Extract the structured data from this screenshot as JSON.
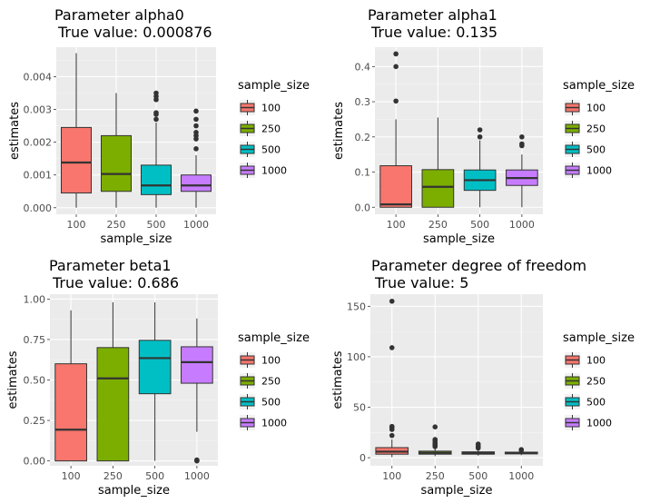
{
  "chart_data": [
    {
      "type": "boxplot",
      "title": "Parameter alpha0",
      "subtitle": "True value:  0.000876",
      "xlabel": "sample_size",
      "ylabel": "estimates",
      "categories": [
        "100",
        "250",
        "500",
        "1000"
      ],
      "ylim": [
        -0.0002,
        0.0049
      ],
      "yticks": [
        "0.000",
        "0.001",
        "0.002",
        "0.003",
        "0.004"
      ],
      "ytick_values": [
        0,
        0.001,
        0.002,
        0.003,
        0.004
      ],
      "legend": {
        "title": "sample_size",
        "labels": [
          "100",
          "250",
          "500",
          "1000"
        ],
        "position": "right"
      },
      "boxes": [
        {
          "whisker_low": 0.0,
          "q1": 0.00045,
          "median": 0.00138,
          "q3": 0.00245,
          "whisker_high": 0.00472,
          "outliers": []
        },
        {
          "whisker_low": 0.0,
          "q1": 0.0005,
          "median": 0.00103,
          "q3": 0.0022,
          "whisker_high": 0.0035,
          "outliers": []
        },
        {
          "whisker_low": 0.0,
          "q1": 0.0004,
          "median": 0.00068,
          "q3": 0.0013,
          "whisker_high": 0.0026,
          "outliers": [
            0.0027,
            0.00285,
            0.0029,
            0.0033,
            0.0034,
            0.0035
          ]
        },
        {
          "whisker_low": 0.0,
          "q1": 0.0005,
          "median": 0.00068,
          "q3": 0.001,
          "whisker_high": 0.0016,
          "outliers": [
            0.0018,
            0.0021,
            0.0022,
            0.0023,
            0.0025,
            0.0027,
            0.00295
          ]
        }
      ]
    },
    {
      "type": "boxplot",
      "title": "Parameter alpha1",
      "subtitle": "True value:  0.135",
      "xlabel": "sample_size",
      "ylabel": "estimates",
      "categories": [
        "100",
        "250",
        "500",
        "1000"
      ],
      "ylim": [
        -0.02,
        0.455
      ],
      "yticks": [
        "0.0",
        "0.1",
        "0.2",
        "0.3",
        "0.4"
      ],
      "ytick_values": [
        0,
        0.1,
        0.2,
        0.3,
        0.4
      ],
      "legend": {
        "title": "sample_size",
        "labels": [
          "100",
          "250",
          "500",
          "1000"
        ],
        "position": "right"
      },
      "boxes": [
        {
          "whisker_low": 0.0,
          "q1": 0.0,
          "median": 0.008,
          "q3": 0.118,
          "whisker_high": 0.25,
          "outliers": [
            0.302,
            0.4,
            0.436
          ]
        },
        {
          "whisker_low": 0.0,
          "q1": 0.0,
          "median": 0.058,
          "q3": 0.107,
          "whisker_high": 0.255,
          "outliers": []
        },
        {
          "whisker_low": 0.0,
          "q1": 0.048,
          "median": 0.077,
          "q3": 0.106,
          "whisker_high": 0.19,
          "outliers": [
            0.2,
            0.22
          ]
        },
        {
          "whisker_low": 0.0,
          "q1": 0.062,
          "median": 0.083,
          "q3": 0.106,
          "whisker_high": 0.15,
          "outliers": [
            0.175,
            0.18,
            0.2
          ]
        }
      ]
    },
    {
      "type": "boxplot",
      "title": "Parameter beta1",
      "subtitle": "True value:  0.686",
      "xlabel": "sample_size",
      "ylabel": "estimates",
      "categories": [
        "100",
        "250",
        "500",
        "1000"
      ],
      "ylim": [
        -0.03,
        1.03
      ],
      "yticks": [
        "0.00",
        "0.25",
        "0.50",
        "0.75",
        "1.00"
      ],
      "ytick_values": [
        0,
        0.25,
        0.5,
        0.75,
        1.0
      ],
      "legend": {
        "title": "sample_size",
        "labels": [
          "100",
          "250",
          "500",
          "1000"
        ],
        "position": "right"
      },
      "boxes": [
        {
          "whisker_low": 0.0,
          "q1": 0.0,
          "median": 0.193,
          "q3": 0.6,
          "whisker_high": 0.93,
          "outliers": []
        },
        {
          "whisker_low": 0.0,
          "q1": 0.0,
          "median": 0.51,
          "q3": 0.7,
          "whisker_high": 0.98,
          "outliers": []
        },
        {
          "whisker_low": 0.0,
          "q1": 0.415,
          "median": 0.635,
          "q3": 0.745,
          "whisker_high": 0.98,
          "outliers": []
        },
        {
          "whisker_low": 0.18,
          "q1": 0.48,
          "median": 0.61,
          "q3": 0.705,
          "whisker_high": 0.88,
          "outliers": [
            0.0,
            0.003,
            0.006
          ]
        }
      ]
    },
    {
      "type": "boxplot",
      "title": "Parameter degree of freedom",
      "subtitle": "True value:  5",
      "xlabel": "sample_size",
      "ylabel": "estimates",
      "categories": [
        "100",
        "250",
        "500",
        "1000"
      ],
      "ylim": [
        -8,
        162
      ],
      "yticks": [
        "0",
        "50",
        "100",
        "150"
      ],
      "ytick_values": [
        0,
        50,
        100,
        150
      ],
      "legend": {
        "title": "sample_size",
        "labels": [
          "100",
          "250",
          "500",
          "1000"
        ],
        "position": "right"
      },
      "boxes": [
        {
          "whisker_low": 0.5,
          "q1": 3.5,
          "median": 6.0,
          "q3": 10.0,
          "whisker_high": 18.0,
          "outliers": [
            22,
            28,
            30,
            31,
            109,
            155
          ]
        },
        {
          "whisker_low": 1.5,
          "q1": 3.5,
          "median": 4.8,
          "q3": 6.5,
          "whisker_high": 10.0,
          "outliers": [
            11,
            12,
            13,
            14,
            15,
            17,
            18,
            30.5
          ]
        },
        {
          "whisker_low": 2.0,
          "q1": 3.5,
          "median": 4.5,
          "q3": 5.8,
          "whisker_high": 8.5,
          "outliers": [
            9.5,
            10.5,
            11.5,
            13.5
          ]
        },
        {
          "whisker_low": 2.5,
          "q1": 3.8,
          "median": 4.6,
          "q3": 5.5,
          "whisker_high": 7.0,
          "outliers": [
            7.5,
            8.0
          ]
        }
      ]
    }
  ],
  "colors": {
    "fills": [
      "#f8766d",
      "#7cae00",
      "#00bfc4",
      "#c77cff"
    ],
    "panel_bg": "#ebebeb",
    "grid_major": "#ffffff",
    "outline": "#333333"
  }
}
